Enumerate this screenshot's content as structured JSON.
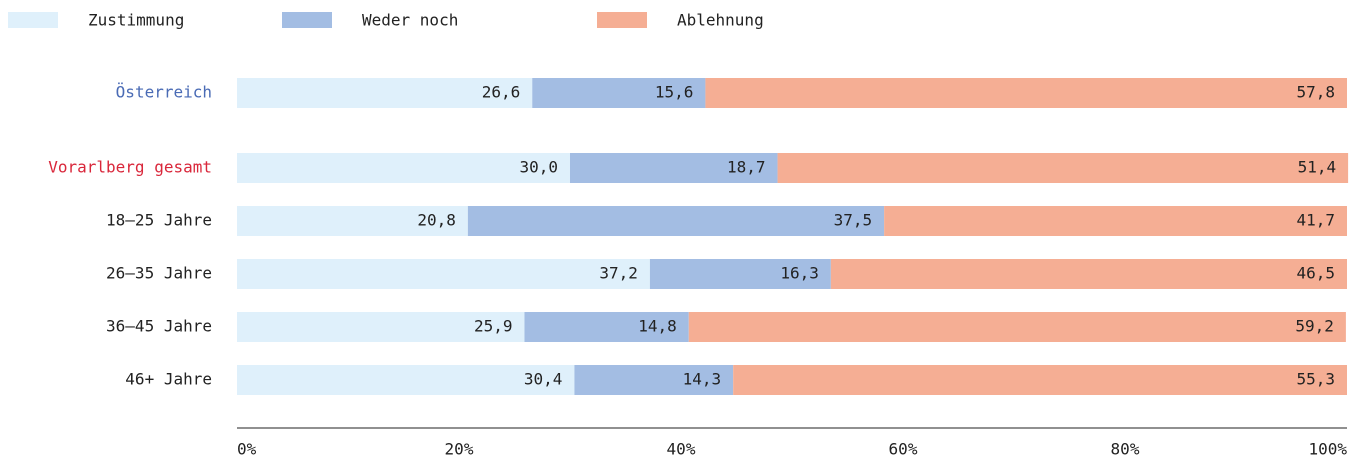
{
  "chart_data": {
    "type": "stacked-bar-horizontal",
    "categories": [
      "Österreich",
      "Vorarlberg gesamt",
      "18–25 Jahre",
      "26–35 Jahre",
      "36–45 Jahre",
      "46+ Jahre"
    ],
    "category_colors": [
      "#4a6bb5",
      "#d9263a",
      "#222222",
      "#222222",
      "#222222",
      "#222222"
    ],
    "series": [
      {
        "name": "Zustimmung",
        "color": "#dff0fb",
        "values": [
          26.6,
          30.0,
          20.8,
          37.2,
          25.9,
          30.4
        ],
        "value_labels": [
          "26,6",
          "30,0",
          "20,8",
          "37,2",
          "25,9",
          "30,4"
        ]
      },
      {
        "name": "Weder noch",
        "color": "#a3bde3",
        "values": [
          15.6,
          18.7,
          37.5,
          16.3,
          14.8,
          14.3
        ],
        "value_labels": [
          "15,6",
          "18,7",
          "37,5",
          "16,3",
          "14,8",
          "14,3"
        ]
      },
      {
        "name": "Ablehnung",
        "color": "#f5ae94",
        "values": [
          57.8,
          51.4,
          41.7,
          46.5,
          59.2,
          55.3
        ],
        "value_labels": [
          "57,8",
          "51,4",
          "41,7",
          "46,5",
          "59,2",
          "55,3"
        ]
      }
    ],
    "xlim": [
      0,
      100
    ],
    "xticks": [
      {
        "value": 0,
        "label": "0%"
      },
      {
        "value": 20,
        "label": "20%"
      },
      {
        "value": 40,
        "label": "40%"
      },
      {
        "value": 60,
        "label": "60%"
      },
      {
        "value": 80,
        "label": "80%"
      },
      {
        "value": 100,
        "label": "100%"
      }
    ],
    "legend": "top-left"
  }
}
